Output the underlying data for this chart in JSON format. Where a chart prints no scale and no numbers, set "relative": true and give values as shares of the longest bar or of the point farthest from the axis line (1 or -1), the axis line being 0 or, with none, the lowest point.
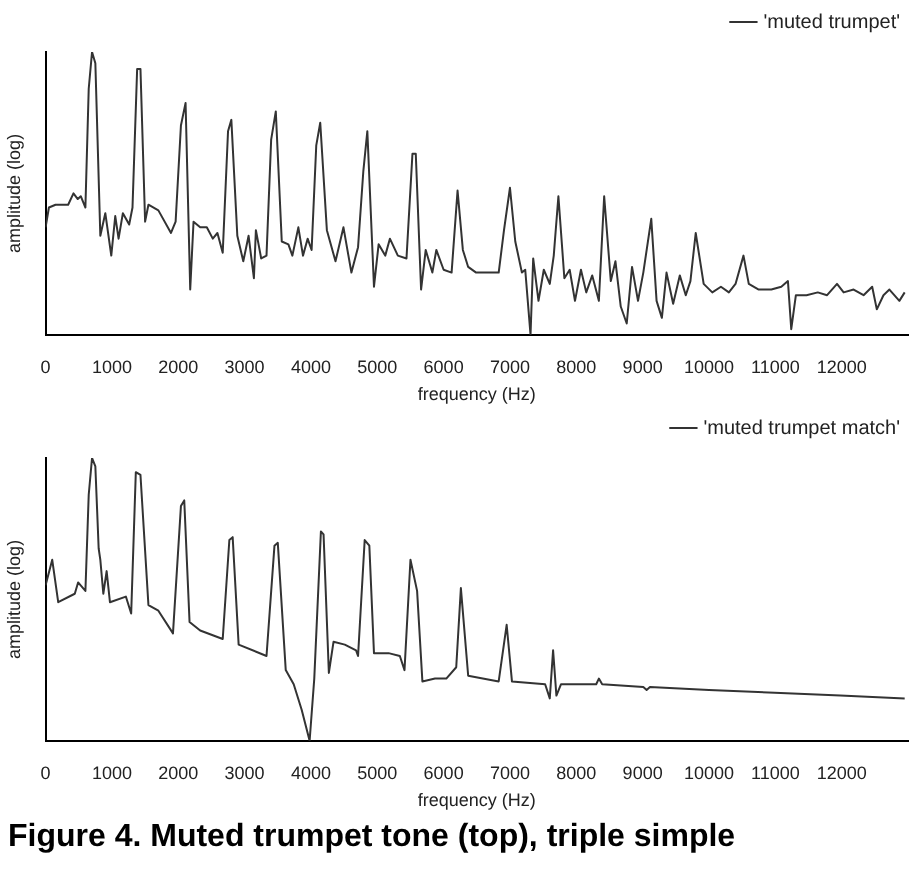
{
  "chart_data": [
    {
      "type": "line",
      "relative": true,
      "xlabel": "frequency (Hz)",
      "ylabel": "amplitude (log)",
      "xlim": [
        0,
        13000
      ],
      "xticks": [
        0,
        1000,
        2000,
        3000,
        4000,
        5000,
        6000,
        7000,
        8000,
        9000,
        10000,
        11000,
        12000
      ],
      "legend": "top right",
      "grid": false,
      "marker": "none",
      "series": [
        {
          "name": "'muted trumpet'",
          "color": "#333333",
          "x": [
            0,
            50,
            150,
            340,
            420,
            485,
            530,
            600,
            650,
            700,
            750,
            825,
            900,
            990,
            1050,
            1100,
            1165,
            1260,
            1310,
            1380,
            1430,
            1500,
            1550,
            1700,
            1890,
            1960,
            2040,
            2110,
            2180,
            2230,
            2330,
            2430,
            2520,
            2590,
            2670,
            2750,
            2800,
            2890,
            2980,
            3060,
            3140,
            3170,
            3250,
            3330,
            3400,
            3470,
            3560,
            3660,
            3720,
            3810,
            3880,
            3950,
            4010,
            4080,
            4140,
            4240,
            4370,
            4490,
            4610,
            4710,
            4790,
            4850,
            4950,
            5020,
            5120,
            5190,
            5310,
            5440,
            5530,
            5580,
            5660,
            5730,
            5830,
            5890,
            6000,
            6120,
            6210,
            6290,
            6370,
            6490,
            6640,
            6830,
            6910,
            7000,
            7080,
            7180,
            7230,
            7310,
            7350,
            7430,
            7510,
            7600,
            7660,
            7730,
            7820,
            7900,
            7980,
            8070,
            8150,
            8240,
            8340,
            8420,
            8520,
            8590,
            8670,
            8760,
            8840,
            8930,
            9010,
            9130,
            9210,
            9290,
            9360,
            9460,
            9560,
            9650,
            9720,
            9800,
            9920,
            10050,
            10180,
            10300,
            10400,
            10520,
            10600,
            10750,
            10940,
            11090,
            11190,
            11240,
            11310,
            11470,
            11640,
            11780,
            11930,
            12030,
            12180,
            12330,
            12460,
            12530,
            12630,
            12720,
            12870,
            12950
          ],
          "values": [
            0.38,
            0.45,
            0.46,
            0.46,
            0.5,
            0.48,
            0.49,
            0.45,
            0.87,
            1,
            0.96,
            0.35,
            0.43,
            0.28,
            0.42,
            0.34,
            0.43,
            0.39,
            0.45,
            0.94,
            0.94,
            0.4,
            0.46,
            0.44,
            0.36,
            0.4,
            0.74,
            0.82,
            0.16,
            0.4,
            0.38,
            0.38,
            0.34,
            0.36,
            0.29,
            0.72,
            0.76,
            0.35,
            0.26,
            0.35,
            0.2,
            0.37,
            0.27,
            0.28,
            0.69,
            0.79,
            0.33,
            0.32,
            0.28,
            0.38,
            0.28,
            0.34,
            0.3,
            0.67,
            0.75,
            0.37,
            0.26,
            0.38,
            0.22,
            0.31,
            0.58,
            0.72,
            0.17,
            0.32,
            0.28,
            0.34,
            0.28,
            0.27,
            0.64,
            0.64,
            0.16,
            0.3,
            0.22,
            0.3,
            0.23,
            0.22,
            0.51,
            0.3,
            0.24,
            0.22,
            0.22,
            0.22,
            0.37,
            0.52,
            0.33,
            0.22,
            0.23,
            0,
            0.27,
            0.12,
            0.23,
            0.18,
            0.28,
            0.49,
            0.2,
            0.23,
            0.12,
            0.23,
            0.15,
            0.21,
            0.12,
            0.49,
            0.19,
            0.26,
            0.1,
            0.04,
            0.24,
            0.12,
            0.22,
            0.41,
            0.12,
            0.06,
            0.22,
            0.11,
            0.21,
            0.14,
            0.19,
            0.36,
            0.18,
            0.15,
            0.17,
            0.15,
            0.18,
            0.28,
            0.18,
            0.16,
            0.16,
            0.17,
            0.19,
            0.02,
            0.14,
            0.14,
            0.15,
            0.14,
            0.18,
            0.15,
            0.16,
            0.14,
            0.17,
            0.09,
            0.14,
            0.16,
            0.12,
            0.15
          ]
        }
      ]
    },
    {
      "type": "line",
      "relative": true,
      "xlabel": "frequency (Hz)",
      "ylabel": "amplitude (log)",
      "xlim": [
        0,
        13000
      ],
      "xticks": [
        0,
        1000,
        2000,
        3000,
        4000,
        5000,
        6000,
        7000,
        8000,
        9000,
        10000,
        11000,
        12000
      ],
      "legend": "top right",
      "grid": false,
      "marker": "none",
      "annotations": [
        "Figure 4. Muted trumpet tone (top), triple simple"
      ],
      "series": [
        {
          "name": "'muted trumpet match'",
          "color": "#333333",
          "x": [
            0,
            100,
            190,
            440,
            490,
            600,
            650,
            700,
            750,
            800,
            825,
            870,
            920,
            970,
            1210,
            1290,
            1360,
            1430,
            1550,
            1700,
            1920,
            2040,
            2090,
            2170,
            2330,
            2670,
            2770,
            2820,
            2910,
            3330,
            3450,
            3500,
            3620,
            3740,
            3860,
            3980,
            4050,
            4150,
            4190,
            4270,
            4340,
            4510,
            4680,
            4710,
            4810,
            4880,
            4950,
            5170,
            5340,
            5410,
            5500,
            5600,
            5680,
            5870,
            6040,
            6190,
            6260,
            6370,
            6830,
            6950,
            7030,
            7530,
            7600,
            7650,
            7700,
            7770,
            8300,
            8340,
            8390,
            9010,
            9060,
            9110,
            10000,
            10990,
            11980,
            12950
          ],
          "values": [
            0.55,
            0.64,
            0.49,
            0.52,
            0.56,
            0.53,
            0.87,
            1,
            0.97,
            0.68,
            0.64,
            0.52,
            0.6,
            0.49,
            0.51,
            0.45,
            0.95,
            0.94,
            0.48,
            0.46,
            0.38,
            0.83,
            0.85,
            0.42,
            0.39,
            0.36,
            0.71,
            0.72,
            0.34,
            0.3,
            0.69,
            0.7,
            0.25,
            0.2,
            0.11,
            0,
            0.22,
            0.74,
            0.73,
            0.24,
            0.35,
            0.34,
            0.32,
            0.3,
            0.71,
            0.69,
            0.31,
            0.31,
            0.3,
            0.25,
            0.64,
            0.53,
            0.21,
            0.22,
            0.22,
            0.26,
            0.54,
            0.23,
            0.21,
            0.41,
            0.21,
            0.2,
            0.15,
            0.32,
            0.16,
            0.2,
            0.2,
            0.22,
            0.2,
            0.19,
            0.18,
            0.19,
            0.18,
            0.17,
            0.16,
            0.15
          ]
        }
      ]
    }
  ]
}
